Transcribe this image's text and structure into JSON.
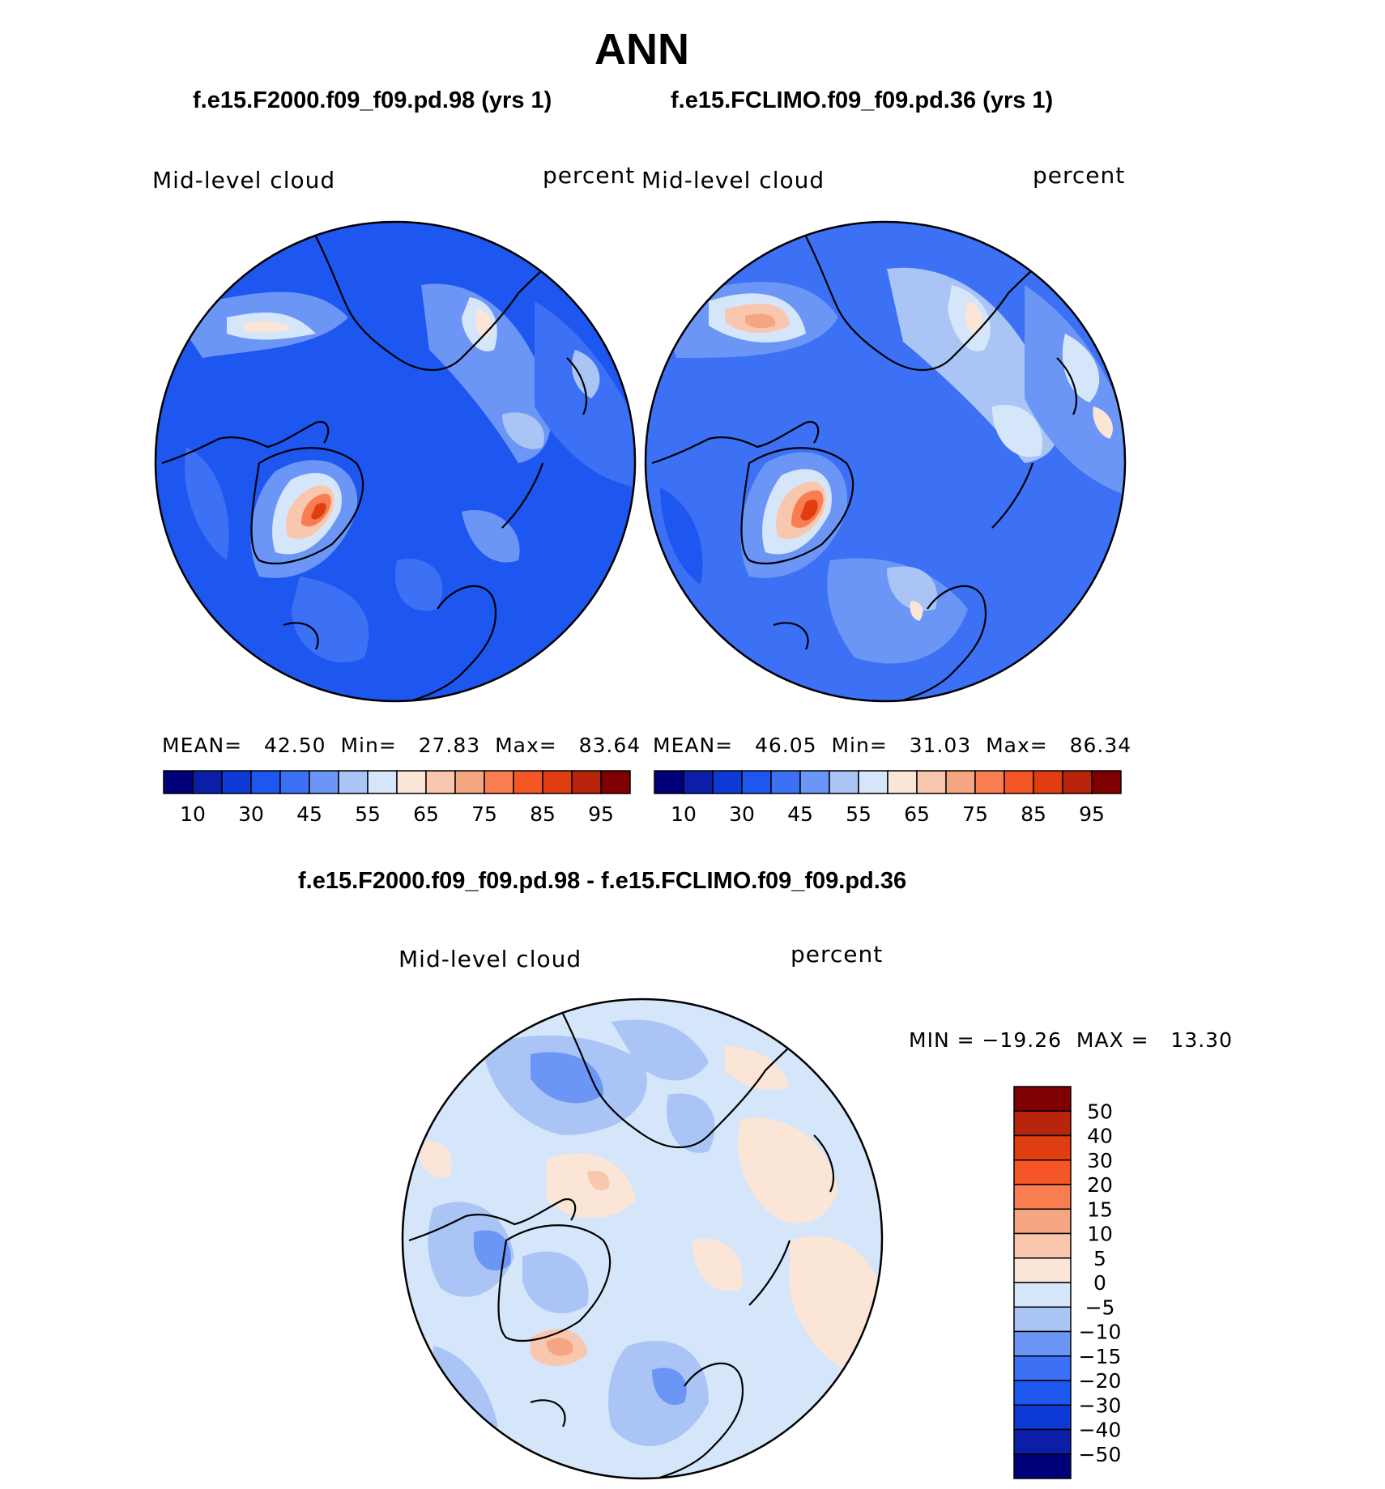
{
  "figure": {
    "season": "ANN",
    "diff_title": "f.e15.F2000.f09_f09.pd.98 - f.e15.FCLIMO.f09_f09.pd.36"
  },
  "colors": {
    "land_outline": "#000000",
    "abs_scale": [
      "#00007a",
      "#0a1ea8",
      "#0d3ad6",
      "#1e56f0",
      "#3c70f5",
      "#6b96f5",
      "#a9c4f5",
      "#d6e6fa",
      "#fbe5d6",
      "#f9c7ad",
      "#f4a582",
      "#f87d50",
      "#f45626",
      "#e03d10",
      "#b8240c",
      "#7f0000"
    ],
    "diff_scale": [
      "#00007a",
      "#0a1ea8",
      "#0d3ad6",
      "#1e56f0",
      "#3c70f5",
      "#6b96f5",
      "#a9c4f5",
      "#d6e6fa",
      "#fbe5d6",
      "#f9c7ad",
      "#f4a582",
      "#f87d50",
      "#f45626",
      "#e03d10",
      "#b8240c",
      "#7f0000"
    ]
  },
  "panels": [
    {
      "title": "f.e15.F2000.f09_f09.pd.98 (yrs 1)",
      "variable": "Mid-level cloud",
      "units": "percent",
      "mean_label": "MEAN=",
      "mean": "42.50",
      "min_label": "Min=",
      "min": "27.83",
      "max_label": "Max=",
      "max": "83.64",
      "colorbar_labels": [
        "10",
        "30",
        "45",
        "55",
        "65",
        "75",
        "85",
        "95"
      ]
    },
    {
      "title": "f.e15.FCLIMO.f09_f09.pd.36 (yrs 1)",
      "variable": "Mid-level cloud",
      "units": "percent",
      "mean_label": "MEAN=",
      "mean": "46.05",
      "min_label": "Min=",
      "min": "31.03",
      "max_label": "Max=",
      "max": "86.34",
      "colorbar_labels": [
        "10",
        "30",
        "45",
        "55",
        "65",
        "75",
        "85",
        "95"
      ]
    },
    {
      "variable": "Mid-level cloud",
      "units": "percent",
      "min_max_text": "MIN = −19.26  MAX =   13.30",
      "colorbar_labels": [
        "50",
        "40",
        "30",
        "20",
        "15",
        "10",
        "5",
        "0",
        "−5",
        "−10",
        "−15",
        "−20",
        "−30",
        "−40",
        "−50"
      ]
    }
  ]
}
